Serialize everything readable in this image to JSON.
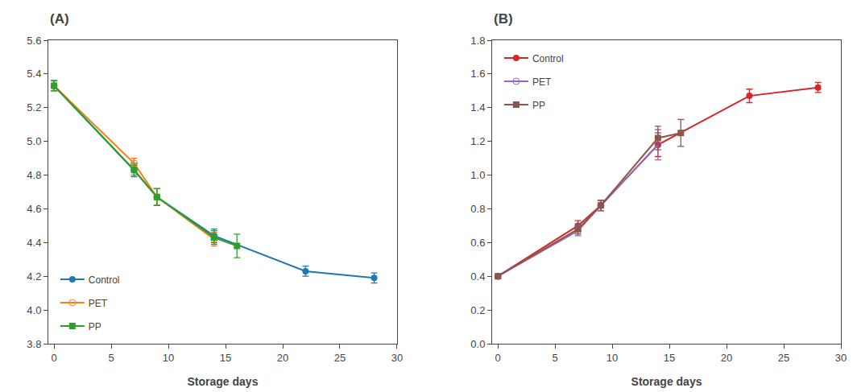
{
  "chart_data": [
    {
      "type": "line",
      "title": "(A)",
      "xlabel": "Storage days",
      "xlim": [
        -0.5,
        30
      ],
      "xticks": [
        0,
        5,
        10,
        15,
        20,
        25,
        30
      ],
      "ylim": [
        3.8,
        5.6
      ],
      "yticks": [
        3.8,
        {
          "value": 4.0,
          "label": "4.0"
        },
        4.2,
        4.4,
        4.6,
        4.8,
        {
          "value": 5.0,
          "label": "5.0"
        },
        5.2,
        5.4,
        5.6
      ],
      "grid": false,
      "legend": "lower left",
      "series": [
        {
          "name": "Control",
          "marker": "circle",
          "line_style": "solid",
          "x": [
            0,
            7,
            9,
            14,
            22,
            28
          ],
          "values": [
            5.33,
            4.83,
            4.67,
            4.44,
            4.23,
            4.19
          ],
          "yerr": [
            0.03,
            0.04,
            0.05,
            0.04,
            0.03,
            0.03
          ]
        },
        {
          "name": "PET",
          "marker": "open circle",
          "line_style": "solid",
          "x": [
            0,
            7,
            9,
            14
          ],
          "values": [
            5.33,
            4.87,
            4.67,
            4.42
          ],
          "yerr": [
            0.03,
            0.03,
            0.05,
            0.04
          ]
        },
        {
          "name": "PP",
          "marker": "square",
          "line_style": "solid",
          "x": [
            0,
            7,
            9,
            14,
            16
          ],
          "values": [
            5.33,
            4.83,
            4.67,
            4.43,
            4.38
          ],
          "yerr": [
            0.03,
            0.03,
            0.05,
            0.04,
            0.07
          ]
        }
      ]
    },
    {
      "type": "line",
      "title": "(B)",
      "xlabel": "Storage days",
      "xlim": [
        -0.5,
        30
      ],
      "xticks": [
        0,
        5,
        10,
        15,
        20,
        25,
        30
      ],
      "ylim": [
        0.0,
        1.8
      ],
      "yticks": [
        {
          "value": 0.0,
          "label": "0.0"
        },
        0.2,
        0.4,
        0.6,
        0.8,
        {
          "value": 1.0,
          "label": "1.0"
        },
        1.2,
        1.4,
        1.6,
        1.8
      ],
      "grid": false,
      "legend": "upper left",
      "series": [
        {
          "name": "Control",
          "marker": "circle",
          "line_style": "solid",
          "x": [
            0,
            7,
            9,
            14,
            22,
            28
          ],
          "values": [
            0.4,
            0.7,
            0.82,
            1.18,
            1.47,
            1.52
          ],
          "yerr": [
            0.01,
            0.03,
            0.03,
            0.07,
            0.04,
            0.03
          ]
        },
        {
          "name": "PET",
          "marker": "open circle",
          "line_style": "solid",
          "x": [
            0,
            7,
            9,
            14
          ],
          "values": [
            0.4,
            0.67,
            0.82,
            1.18
          ],
          "yerr": [
            0.01,
            0.03,
            0.03,
            0.09
          ]
        },
        {
          "name": "PP",
          "marker": "square",
          "line_style": "solid",
          "x": [
            0,
            7,
            9,
            14,
            16
          ],
          "values": [
            0.4,
            0.68,
            0.82,
            1.22,
            1.25
          ],
          "yerr": [
            0.01,
            0.03,
            0.03,
            0.07,
            0.08
          ]
        }
      ]
    }
  ]
}
